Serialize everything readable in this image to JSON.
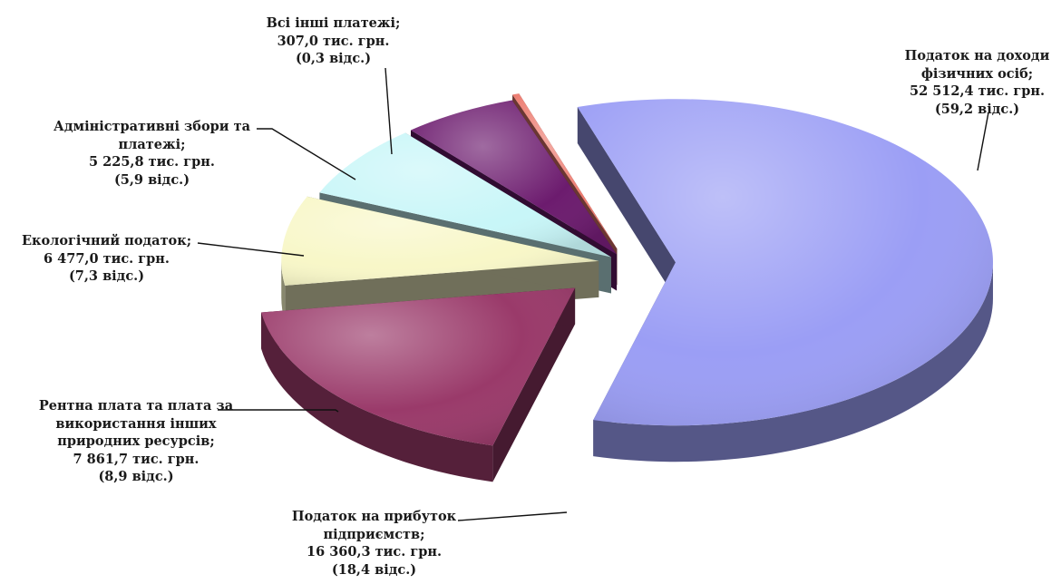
{
  "chart_data": {
    "type": "pie",
    "style": "3d-exploded",
    "slices": [
      {
        "name": "Податок на доходи фізичних осіб",
        "value": 52512.4,
        "percent": 59.2,
        "color": "#9b9ef5",
        "label_lines": [
          "Податок на доходи",
          "фізичних осіб;",
          "52 512,4 тис. грн.",
          "(59,2 відс.)"
        ]
      },
      {
        "name": "Податок на прибуток підприємств",
        "value": 16360.3,
        "percent": 18.4,
        "color": "#9a3a6a",
        "label_lines": [
          "Податок на прибуток",
          "підприємств;",
          "16 360,3 тис. грн.",
          "(18,4 відс.)"
        ]
      },
      {
        "name": "Рентна плата та плата за використання інших природних ресурсів",
        "value": 7861.7,
        "percent": 8.9,
        "color": "#f8f7c8",
        "label_lines": [
          "Рентна плата та плата за",
          "використання інших",
          "природних ресурсів;",
          "7 861,7 тис. грн.",
          "(8,9 відс.)"
        ]
      },
      {
        "name": "Екологічний податок",
        "value": 6477.0,
        "percent": 7.3,
        "color": "#c8f6f8",
        "label_lines": [
          "Екологічний податок;",
          "6 477,0 тис. грн.",
          "(7,3 відс.)"
        ]
      },
      {
        "name": "Адміністративні збори та платежі",
        "value": 5225.8,
        "percent": 5.9,
        "color": "#6c1b6e",
        "label_lines": [
          "Адміністративні збори та",
          "платежі;",
          "5 225,8 тис. грн.",
          "(5,9 відс.)"
        ]
      },
      {
        "name": "Всі інші платежі",
        "value": 307.0,
        "percent": 0.3,
        "color": "#ec7a6e",
        "label_lines": [
          "Всі інші платежі;",
          "307,0 тис. грн.",
          "(0,3 відс.)"
        ]
      }
    ]
  }
}
